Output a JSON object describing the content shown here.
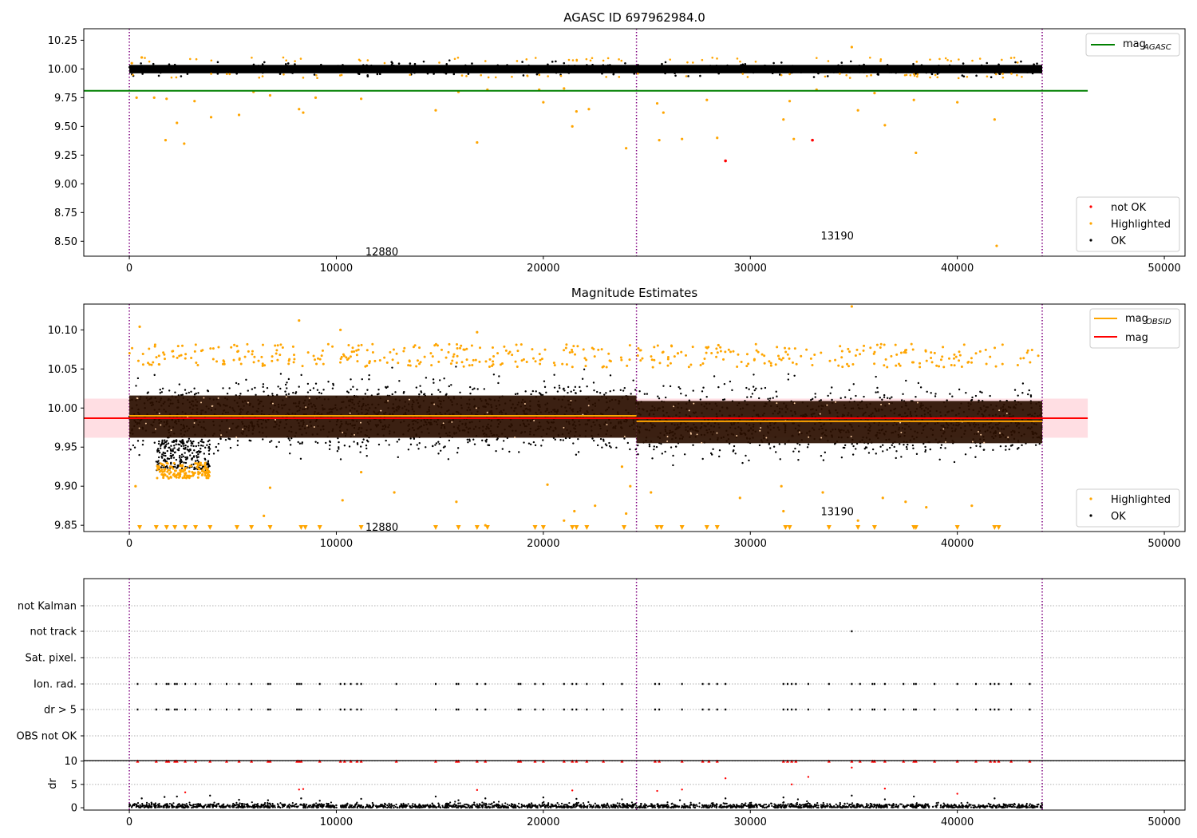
{
  "chart_data": [
    {
      "type": "scatter",
      "title": "AGASC ID 697962984.0",
      "xlim": [
        -2200,
        51000
      ],
      "ylim": [
        8.37,
        10.35
      ],
      "xticks": [
        "0",
        "10000",
        "20000",
        "30000",
        "40000",
        "50000"
      ],
      "xtick_values": [
        0,
        10000,
        20000,
        30000,
        40000,
        50000
      ],
      "yticks": [
        "8.50",
        "8.75",
        "9.00",
        "9.25",
        "9.50",
        "9.75",
        "10.00",
        "10.25"
      ],
      "ytick_values": [
        8.5,
        8.75,
        9.0,
        9.25,
        9.5,
        9.75,
        10.0,
        10.25
      ],
      "obs_boundaries": [
        0,
        24500,
        44100
      ],
      "obs_labels": [
        {
          "text": "12880",
          "x": 12200,
          "y": 8.41
        },
        {
          "text": "13190",
          "x": 34200,
          "y": 8.55
        }
      ],
      "reference_lines": [
        {
          "name": "mag_AGASC",
          "y": 9.81,
          "x_from": -2200,
          "x_to": 46300,
          "color": "#008000"
        }
      ],
      "band": {
        "y_min": 9.93,
        "y_max": 10.07,
        "x_from": 0,
        "x_to": 44100
      },
      "outliers_highlighted": [
        [
          120,
          10.05
        ],
        [
          350,
          9.75
        ],
        [
          600,
          10.1
        ],
        [
          1200,
          9.75
        ],
        [
          1750,
          9.38
        ],
        [
          1800,
          9.74
        ],
        [
          2300,
          9.53
        ],
        [
          2650,
          9.35
        ],
        [
          3150,
          9.72
        ],
        [
          3950,
          9.58
        ],
        [
          5300,
          9.6
        ],
        [
          6000,
          9.8
        ],
        [
          6800,
          9.77
        ],
        [
          8200,
          9.65
        ],
        [
          8400,
          9.62
        ],
        [
          9000,
          9.75
        ],
        [
          11200,
          9.74
        ],
        [
          14800,
          9.64
        ],
        [
          15900,
          9.8
        ],
        [
          16800,
          9.36
        ],
        [
          17300,
          9.82
        ],
        [
          19800,
          9.82
        ],
        [
          20000,
          9.71
        ],
        [
          21000,
          9.83
        ],
        [
          21400,
          9.5
        ],
        [
          21600,
          9.63
        ],
        [
          22200,
          9.65
        ],
        [
          24000,
          9.31
        ],
        [
          25500,
          9.7
        ],
        [
          25600,
          9.38
        ],
        [
          25800,
          9.62
        ],
        [
          26700,
          9.39
        ],
        [
          27900,
          9.73
        ],
        [
          28400,
          9.4
        ],
        [
          31600,
          9.56
        ],
        [
          31900,
          9.72
        ],
        [
          32100,
          9.39
        ],
        [
          33200,
          9.82
        ],
        [
          35200,
          9.64
        ],
        [
          36000,
          9.79
        ],
        [
          36500,
          9.51
        ],
        [
          37900,
          9.73
        ],
        [
          38000,
          9.27
        ],
        [
          40000,
          9.71
        ],
        [
          41800,
          9.56
        ],
        [
          41900,
          8.46
        ],
        [
          34900,
          10.19
        ]
      ],
      "outliers_not_ok": [
        [
          28800,
          9.2
        ],
        [
          33000,
          9.38
        ]
      ],
      "legends": [
        {
          "placement": "top-right",
          "entries": [
            {
              "label": "mag",
              "sub": "AGASC",
              "kind": "line",
              "color": "#008000"
            }
          ]
        },
        {
          "placement": "lower-right",
          "entries": [
            {
              "label": "not OK",
              "kind": "dot",
              "color": "#ff0000"
            },
            {
              "label": "Highlighted",
              "kind": "dot",
              "color": "#ffa500"
            },
            {
              "label": "OK",
              "kind": "dot",
              "color": "#000000"
            }
          ]
        }
      ]
    },
    {
      "type": "scatter",
      "title": "Magnitude Estimates",
      "xlim": [
        -2200,
        51000
      ],
      "ylim": [
        9.842,
        10.133
      ],
      "xticks": [
        "0",
        "10000",
        "20000",
        "30000",
        "40000",
        "50000"
      ],
      "xtick_values": [
        0,
        10000,
        20000,
        30000,
        40000,
        50000
      ],
      "yticks": [
        "9.85",
        "9.90",
        "9.95",
        "10.00",
        "10.05",
        "10.10"
      ],
      "ytick_values": [
        9.85,
        9.9,
        9.95,
        10.0,
        10.05,
        10.1
      ],
      "obs_boundaries": [
        0,
        24500,
        44100
      ],
      "obs_labels": [
        {
          "text": "12880",
          "x": 12200,
          "y": 9.848
        },
        {
          "text": "13190",
          "x": 34200,
          "y": 9.868
        }
      ],
      "segments": [
        {
          "x_from": 0,
          "x_to": 24500,
          "mean": 9.99,
          "band": [
            9.962,
            10.016
          ]
        },
        {
          "x_from": 24500,
          "x_to": 44100,
          "mean": 9.983,
          "band": [
            9.955,
            10.009
          ]
        }
      ],
      "reference_lines": [
        {
          "name": "mag_OBSID",
          "color": "#ffa500",
          "segments": [
            [
              0,
              24500,
              9.99
            ],
            [
              24500,
              44100,
              9.983
            ]
          ]
        },
        {
          "name": "mag",
          "color": "#ff0000",
          "y": 9.987,
          "x_from": -2200,
          "x_to": 46300
        }
      ],
      "mag_band": {
        "y_min": 9.962,
        "y_max": 10.012,
        "color": "#ffb6c1"
      },
      "dip": {
        "x_from": 1300,
        "x_to": 3900,
        "y_low": 9.92
      },
      "outliers_highlighted": [
        [
          300,
          9.9
        ],
        [
          500,
          10.104
        ],
        [
          1700,
          9.915
        ],
        [
          1900,
          9.91
        ],
        [
          3100,
          9.915
        ],
        [
          3800,
          9.917
        ],
        [
          6500,
          9.862
        ],
        [
          6800,
          9.898
        ],
        [
          8200,
          10.112
        ],
        [
          10200,
          10.1
        ],
        [
          10300,
          9.882
        ],
        [
          11200,
          9.918
        ],
        [
          12800,
          9.892
        ],
        [
          15800,
          9.88
        ],
        [
          16800,
          10.097
        ],
        [
          17200,
          9.85
        ],
        [
          20200,
          9.902
        ],
        [
          21000,
          9.856
        ],
        [
          21500,
          9.868
        ],
        [
          22500,
          9.875
        ],
        [
          23800,
          9.925
        ],
        [
          24000,
          9.865
        ],
        [
          24200,
          9.9
        ],
        [
          25200,
          9.892
        ],
        [
          26500,
          10.07
        ],
        [
          29500,
          9.885
        ],
        [
          31500,
          9.9
        ],
        [
          31600,
          9.868
        ],
        [
          33500,
          9.892
        ],
        [
          34900,
          10.13
        ],
        [
          35200,
          9.856
        ],
        [
          36400,
          9.885
        ],
        [
          37500,
          9.88
        ],
        [
          38500,
          9.873
        ],
        [
          40700,
          9.875
        ]
      ],
      "below_axis_markers": [
        500,
        1300,
        1800,
        2200,
        2700,
        3200,
        3900,
        5200,
        5900,
        6800,
        8300,
        8500,
        9200,
        11200,
        14800,
        15900,
        16800,
        17300,
        19600,
        20000,
        21400,
        21600,
        22100,
        23900,
        25500,
        25700,
        26700,
        27900,
        28400,
        31700,
        31900,
        33800,
        35200,
        36000,
        37900,
        38000,
        40000,
        41800,
        42000
      ],
      "legends": [
        {
          "placement": "top-right",
          "entries": [
            {
              "label": "mag",
              "sub": "OBSID",
              "kind": "line",
              "color": "#ffa500"
            },
            {
              "label": "mag",
              "sub": "",
              "kind": "line",
              "color": "#ff0000"
            }
          ]
        },
        {
          "placement": "lower-right",
          "entries": [
            {
              "label": "Highlighted",
              "kind": "dot",
              "color": "#ffa500"
            },
            {
              "label": "OK",
              "kind": "dot",
              "color": "#000000"
            }
          ]
        }
      ]
    },
    {
      "type": "scatter",
      "title": "",
      "xlim": [
        -2200,
        51000
      ],
      "flag_rows": [
        "not Kalman",
        "not track",
        "Sat. pixel.",
        "Ion. rad.",
        "dr > 5",
        "OBS not OK"
      ],
      "flag_events": {
        "not track": [
          34900
        ],
        "Ion. rad.": [
          400,
          1300,
          1800,
          1900,
          2200,
          2300,
          2700,
          3200,
          3900,
          4700,
          5300,
          5900,
          6700,
          6800,
          8100,
          8200,
          8300,
          9200,
          10200,
          10400,
          10700,
          11000,
          11200,
          12900,
          14800,
          15800,
          15900,
          16800,
          17200,
          18800,
          18900,
          19600,
          20000,
          21000,
          21400,
          21600,
          22100,
          22900,
          23800,
          25400,
          25600,
          26700,
          27700,
          28000,
          28400,
          28800,
          31600,
          31800,
          32000,
          32200,
          32800,
          33800,
          34900,
          35300,
          35900,
          36000,
          36500,
          37400,
          37900,
          38000,
          38900,
          40000,
          40900,
          41600,
          41800,
          42000,
          42600,
          43500
        ],
        "dr > 5": [
          400,
          1300,
          1800,
          1900,
          2200,
          2300,
          2700,
          3200,
          3900,
          4700,
          5300,
          5900,
          6700,
          6800,
          8100,
          8200,
          8300,
          9200,
          10200,
          10400,
          10700,
          11000,
          11200,
          12900,
          14800,
          15800,
          15900,
          16800,
          17200,
          18800,
          18900,
          19600,
          20000,
          21000,
          21400,
          21600,
          22100,
          22900,
          23800,
          25400,
          25600,
          26700,
          27700,
          28000,
          28400,
          28800,
          31600,
          31800,
          32000,
          32200,
          32800,
          33800,
          34900,
          35300,
          35900,
          36000,
          36500,
          37400,
          37900,
          38000,
          38900,
          40000,
          40900,
          41600,
          41800,
          42000,
          42600,
          43500
        ]
      },
      "obs_boundaries": [
        0,
        24500,
        44100
      ]
    },
    {
      "type": "scatter",
      "title": "",
      "ylabel": "dr",
      "xlim": [
        -2200,
        51000
      ],
      "ylim": [
        -0.5,
        10.1
      ],
      "xticks": [
        "0",
        "10000",
        "20000",
        "30000",
        "40000",
        "50000"
      ],
      "xtick_values": [
        0,
        10000,
        20000,
        30000,
        40000,
        50000
      ],
      "yticks": [
        "0",
        "5",
        "10"
      ],
      "ytick_values": [
        0,
        5,
        10
      ],
      "obs_boundaries": [
        0,
        24500,
        44100
      ],
      "capped_red": [
        400,
        1300,
        1800,
        1900,
        2200,
        2300,
        2700,
        3200,
        3900,
        4700,
        5300,
        5900,
        6700,
        6800,
        8100,
        8200,
        8300,
        9200,
        10200,
        10400,
        10700,
        11000,
        11200,
        12900,
        14800,
        15800,
        15900,
        16800,
        17200,
        18800,
        18900,
        19600,
        20000,
        21000,
        21400,
        21600,
        22100,
        22900,
        23800,
        25400,
        25600,
        26700,
        27700,
        28000,
        28400,
        31600,
        31800,
        32000,
        32200,
        33800,
        34900,
        35300,
        35900,
        36000,
        36500,
        37400,
        37900,
        38000,
        38900,
        40000,
        40900,
        41600,
        41800,
        42000,
        42600,
        43500
      ],
      "red_points": [
        [
          2700,
          3.3
        ],
        [
          8200,
          3.9
        ],
        [
          8400,
          4.0
        ],
        [
          16800,
          3.8
        ],
        [
          21400,
          3.7
        ],
        [
          25500,
          3.6
        ],
        [
          26700,
          3.9
        ],
        [
          28800,
          6.3
        ],
        [
          32000,
          5.0
        ],
        [
          32800,
          6.6
        ],
        [
          34900,
          8.6
        ],
        [
          36500,
          4.1
        ],
        [
          40000,
          3.0
        ]
      ],
      "black_spikes": [
        [
          600,
          2.0
        ],
        [
          1700,
          2.3
        ],
        [
          2300,
          2.4
        ],
        [
          3900,
          2.6
        ],
        [
          5300,
          1.7
        ],
        [
          6700,
          1.6
        ],
        [
          8300,
          2.0
        ],
        [
          9200,
          1.5
        ],
        [
          11200,
          1.9
        ],
        [
          14800,
          2.4
        ],
        [
          15900,
          1.6
        ],
        [
          17200,
          2.0
        ],
        [
          20000,
          2.2
        ],
        [
          21600,
          1.9
        ],
        [
          23800,
          1.8
        ],
        [
          26600,
          1.6
        ],
        [
          28800,
          2.0
        ],
        [
          31600,
          2.2
        ],
        [
          32300,
          1.8
        ],
        [
          34900,
          2.6
        ],
        [
          36500,
          1.8
        ],
        [
          37900,
          2.4
        ],
        [
          41800,
          2.0
        ]
      ]
    }
  ],
  "colors": {
    "ok": "#000000",
    "highlighted": "#ffa500",
    "not_ok": "#ff0000",
    "obs_boundary": "#800080",
    "agasc_line": "#008000",
    "obsid_line": "#ffa500",
    "mag_line": "#ff0000",
    "mag_band": "#ffb6c1",
    "dense_cloud": "#2a0f00"
  }
}
